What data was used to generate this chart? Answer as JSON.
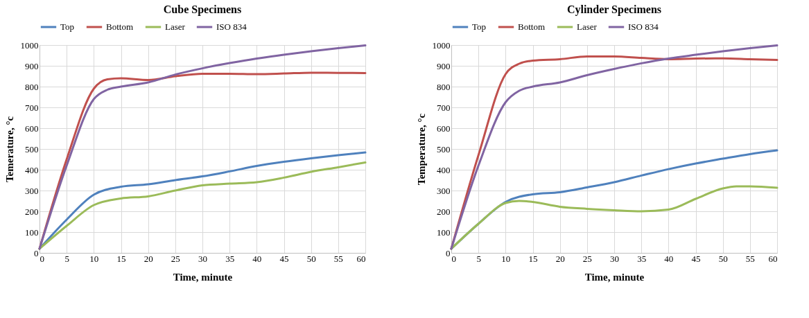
{
  "chart_data": [
    {
      "type": "line",
      "title": "Cube Specimens",
      "xlabel": "Time, minute",
      "ylabel": "Temerature, °c",
      "xlim": [
        0,
        60
      ],
      "xticks": [
        0,
        5,
        10,
        15,
        20,
        25,
        30,
        35,
        40,
        45,
        50,
        55,
        60
      ],
      "ylim": [
        0,
        1000
      ],
      "yticks": [
        0,
        100,
        200,
        300,
        400,
        500,
        600,
        700,
        800,
        900,
        1000
      ],
      "grid": true,
      "legend": "top",
      "marker": "none",
      "line_style": "solid",
      "series": [
        {
          "name": "Top",
          "color": "#4f81bd",
          "x": [
            0,
            5,
            10,
            15,
            20,
            25,
            30,
            35,
            40,
            45,
            50,
            55,
            60
          ],
          "values": [
            20,
            160,
            280,
            318,
            330,
            350,
            368,
            392,
            418,
            438,
            455,
            470,
            483
          ]
        },
        {
          "name": "Bottom",
          "color": "#c0504d",
          "x": [
            0,
            5,
            10,
            12.5,
            15,
            20,
            25,
            30,
            35,
            40,
            45,
            50,
            55,
            60
          ],
          "values": [
            20,
            450,
            790,
            835,
            840,
            832,
            850,
            862,
            862,
            860,
            863,
            867,
            866,
            865
          ]
        },
        {
          "name": "Laser",
          "color": "#9bbb59",
          "x": [
            0,
            5,
            10,
            15,
            20,
            25,
            30,
            35,
            40,
            45,
            50,
            55,
            60
          ],
          "values": [
            20,
            130,
            230,
            262,
            272,
            300,
            325,
            333,
            340,
            362,
            390,
            412,
            435
          ]
        },
        {
          "name": "ISO 834",
          "color": "#8064a2",
          "x": [
            0,
            5,
            10,
            12.5,
            15,
            20,
            25,
            30,
            35,
            40,
            45,
            50,
            55,
            60
          ],
          "values": [
            20,
            420,
            740,
            785,
            800,
            820,
            858,
            888,
            913,
            935,
            953,
            970,
            985,
            998
          ]
        }
      ]
    },
    {
      "type": "line",
      "title": "Cylinder Specimens",
      "xlabel": "Time, minute",
      "ylabel": "Temperature, °c",
      "xlim": [
        0,
        60
      ],
      "xticks": [
        0,
        5,
        10,
        15,
        20,
        25,
        30,
        35,
        40,
        45,
        50,
        55,
        60
      ],
      "ylim": [
        0,
        1000
      ],
      "yticks": [
        0,
        100,
        200,
        300,
        400,
        500,
        600,
        700,
        800,
        900,
        1000
      ],
      "grid": true,
      "legend": "top",
      "marker": "none",
      "line_style": "solid",
      "series": [
        {
          "name": "Top",
          "color": "#4f81bd",
          "x": [
            0,
            5,
            10,
            15,
            20,
            25,
            30,
            35,
            40,
            45,
            50,
            55,
            60
          ],
          "values": [
            20,
            140,
            245,
            282,
            292,
            315,
            340,
            372,
            403,
            430,
            453,
            475,
            493
          ]
        },
        {
          "name": "Bottom",
          "color": "#c0504d",
          "x": [
            0,
            5,
            10,
            12.5,
            15,
            20,
            25,
            30,
            35,
            40,
            45,
            50,
            55,
            60
          ],
          "values": [
            20,
            470,
            860,
            910,
            925,
            932,
            945,
            945,
            938,
            932,
            935,
            936,
            932,
            928
          ]
        },
        {
          "name": "Laser",
          "color": "#9bbb59",
          "x": [
            0,
            5,
            10,
            12.5,
            15,
            20,
            25,
            30,
            35,
            40,
            45,
            50,
            52.5,
            55,
            60
          ],
          "values": [
            20,
            140,
            240,
            250,
            245,
            222,
            212,
            205,
            200,
            208,
            260,
            310,
            320,
            320,
            313
          ]
        },
        {
          "name": "ISO 834",
          "color": "#8064a2",
          "x": [
            0,
            5,
            10,
            12.5,
            15,
            20,
            25,
            30,
            35,
            40,
            45,
            50,
            55,
            60
          ],
          "values": [
            20,
            420,
            725,
            780,
            800,
            820,
            855,
            885,
            912,
            935,
            953,
            970,
            985,
            998
          ]
        }
      ]
    }
  ]
}
